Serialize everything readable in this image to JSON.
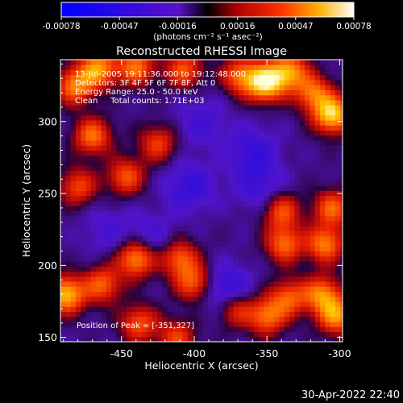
{
  "chart_data": {
    "type": "heatmap",
    "title": "Reconstructed RHESSI Image",
    "xlabel": "Heliocentric X (arcsec)",
    "ylabel": "Heliocentric Y (arcsec)",
    "xlim": [
      -492,
      -298
    ],
    "ylim": [
      147,
      343
    ],
    "xticks": [
      -450,
      -400,
      -350,
      -300
    ],
    "yticks": [
      150,
      200,
      250,
      300
    ],
    "colorbar": {
      "ticks": [
        "-0.00078",
        "-0.00047",
        "-0.00016",
        "0.00016",
        "0.00047",
        "0.00078"
      ],
      "label": "(photons cm⁻² s⁻¹ asec⁻²)",
      "range": [
        -0.00078,
        0.00078
      ]
    },
    "annotations": [
      "13-Jul-2005 19:11:36.000 to 19:12:48.000",
      "Detectors: 3F 4F 5F 6F 7F 8F, Att 0",
      "Energy Range: 25.0 - 50.0 keV",
      "Clean     Total counts: 1.71E+03"
    ],
    "peak_label": "Position of Peak = [-351,327]",
    "peak": [
      -351,
      327
    ],
    "sources": [
      {
        "x": -482,
        "y": 325,
        "v": 0.00055
      },
      {
        "x": -466,
        "y": 337,
        "v": 0.0006
      },
      {
        "x": -440,
        "y": 338,
        "v": 0.00052
      },
      {
        "x": -407,
        "y": 336,
        "v": 0.00045
      },
      {
        "x": -368,
        "y": 332,
        "v": 0.0005
      },
      {
        "x": -351,
        "y": 327,
        "v": 0.00078
      },
      {
        "x": -335,
        "y": 335,
        "v": 0.0006
      },
      {
        "x": -305,
        "y": 305,
        "v": 0.00075
      },
      {
        "x": -318,
        "y": 320,
        "v": 0.0005
      },
      {
        "x": -470,
        "y": 290,
        "v": 0.00052
      },
      {
        "x": -447,
        "y": 262,
        "v": 0.00045
      },
      {
        "x": -425,
        "y": 285,
        "v": 0.0004
      },
      {
        "x": -480,
        "y": 255,
        "v": 0.00042
      },
      {
        "x": -340,
        "y": 238,
        "v": 0.00045
      },
      {
        "x": -338,
        "y": 215,
        "v": 0.0005
      },
      {
        "x": -305,
        "y": 240,
        "v": 0.00048
      },
      {
        "x": -310,
        "y": 215,
        "v": 0.00055
      },
      {
        "x": -488,
        "y": 180,
        "v": 0.0007
      },
      {
        "x": -463,
        "y": 187,
        "v": 0.00048
      },
      {
        "x": -440,
        "y": 205,
        "v": 0.00062
      },
      {
        "x": -438,
        "y": 160,
        "v": 0.00045
      },
      {
        "x": -410,
        "y": 205,
        "v": 0.00048
      },
      {
        "x": -400,
        "y": 188,
        "v": 0.00048
      },
      {
        "x": -372,
        "y": 170,
        "v": 0.00042
      },
      {
        "x": -350,
        "y": 165,
        "v": 0.00052
      },
      {
        "x": -335,
        "y": 178,
        "v": 0.00045
      },
      {
        "x": -312,
        "y": 180,
        "v": 0.00055
      },
      {
        "x": -302,
        "y": 165,
        "v": 0.00058
      },
      {
        "x": -412,
        "y": 150,
        "v": 0.0004
      }
    ],
    "sinks": [
      {
        "x": -378,
        "y": 183,
        "v": -0.00035
      },
      {
        "x": -403,
        "y": 255,
        "v": -0.00028
      },
      {
        "x": -360,
        "y": 280,
        "v": -0.00026
      },
      {
        "x": -355,
        "y": 255,
        "v": -0.00022
      },
      {
        "x": -395,
        "y": 300,
        "v": -0.0002
      },
      {
        "x": -430,
        "y": 220,
        "v": -0.00018
      },
      {
        "x": -460,
        "y": 225,
        "v": -0.00016
      }
    ]
  },
  "footer": {
    "timestamp": "30-Apr-2022 22:40"
  }
}
